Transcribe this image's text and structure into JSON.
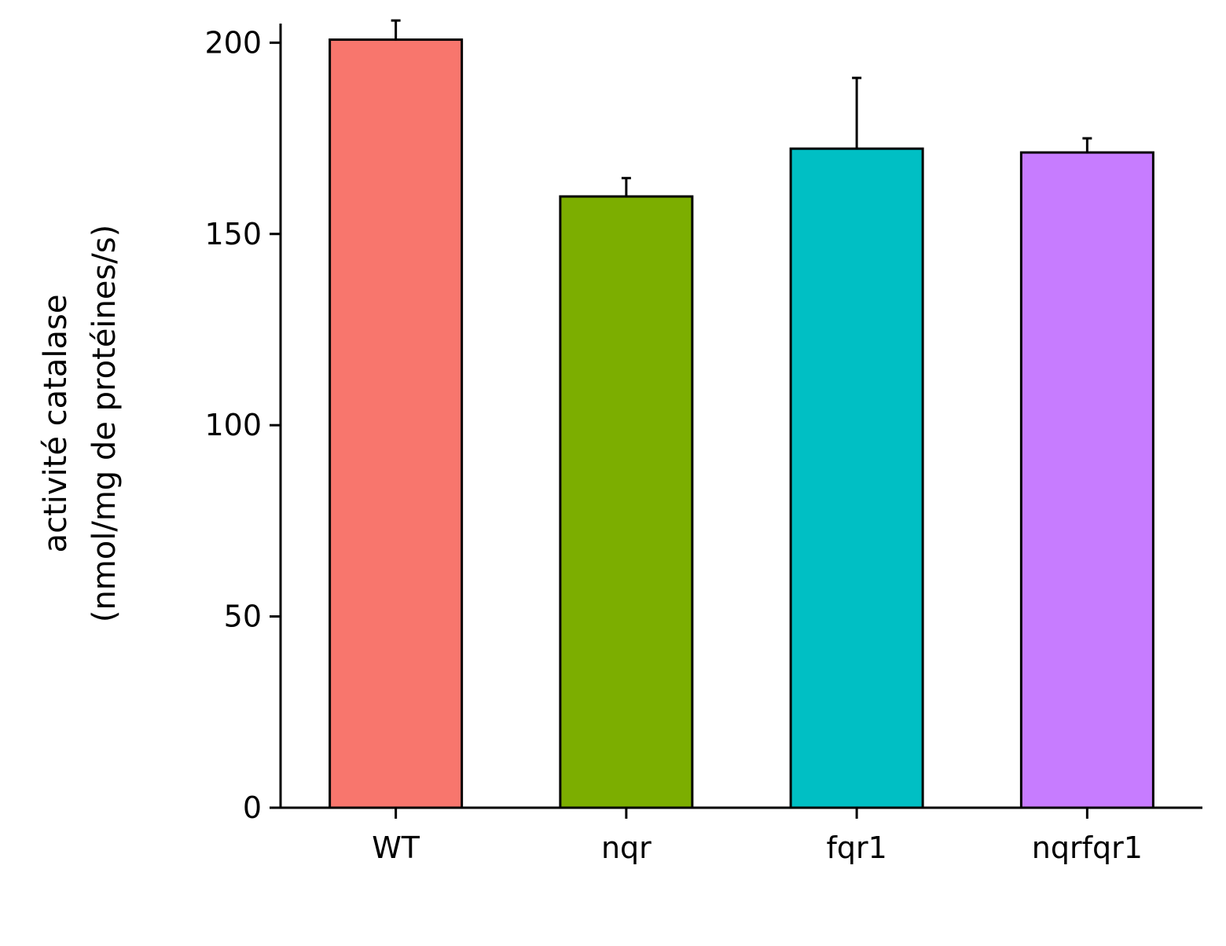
{
  "chart_data": {
    "type": "bar",
    "title": "",
    "categories": [
      "WT",
      "nqr",
      "fqr1",
      "nqrfqr1"
    ],
    "values": [
      200.8,
      159.8,
      172.3,
      171.3
    ],
    "errors": [
      5.0,
      4.8,
      18.5,
      3.7
    ],
    "colors": [
      "#F8766D",
      "#7CAE00",
      "#00BFC4",
      "#C77CFF"
    ],
    "ylabel_lines": [
      "activité catalase",
      "(nmol/mg de protéines/s)"
    ],
    "xlabel": "",
    "yticks": [
      0,
      50,
      100,
      150,
      200
    ],
    "ylim": [
      0,
      205
    ],
    "grid": false,
    "legend": "none"
  }
}
